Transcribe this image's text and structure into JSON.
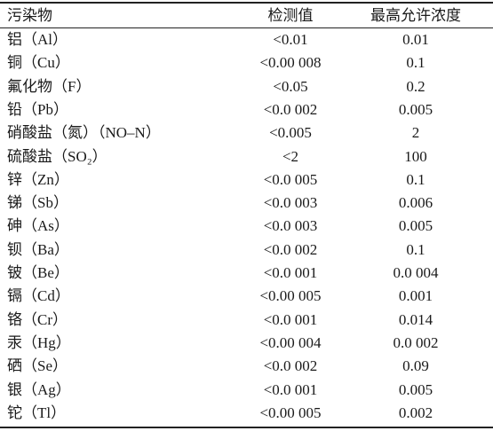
{
  "table": {
    "header": [
      "污染物",
      "检测值",
      "最高允许浓度"
    ],
    "rows": [
      [
        "铝（Al）",
        "<0.01",
        "0.01"
      ],
      [
        "铜（Cu）",
        "<0.00 008",
        "0.1"
      ],
      [
        "氟化物（F）",
        "<0.05",
        "0.2"
      ],
      [
        "铅（Pb）",
        "<0.0 002",
        "0.005"
      ],
      [
        "硝酸盐（氮）（NO–N）",
        "<0.005",
        "2"
      ],
      [
        "硫酸盐（SO₂）",
        "<2",
        "100"
      ],
      [
        "锌（Zn）",
        "<0.0 005",
        "0.1"
      ],
      [
        "锑（Sb）",
        "<0.0 003",
        "0.006"
      ],
      [
        "砷（As）",
        "<0.0 003",
        "0.005"
      ],
      [
        "钡（Ba）",
        "<0.0 002",
        "0.1"
      ],
      [
        "铍（Be）",
        "<0.0 001",
        "0.0 004"
      ],
      [
        "镉（Cd）",
        "<0.00 005",
        "0.001"
      ],
      [
        "铬（Cr）",
        "<0.0 001",
        "0.014"
      ],
      [
        "汞（Hg）",
        "<0.00 004",
        "0.0 002"
      ],
      [
        "硒（Se）",
        "<0.0 002",
        "0.09"
      ],
      [
        "银（Ag）",
        "<0.0 001",
        "0.005"
      ],
      [
        "铊（Tl）",
        "<0.00 005",
        "0.002"
      ]
    ]
  }
}
